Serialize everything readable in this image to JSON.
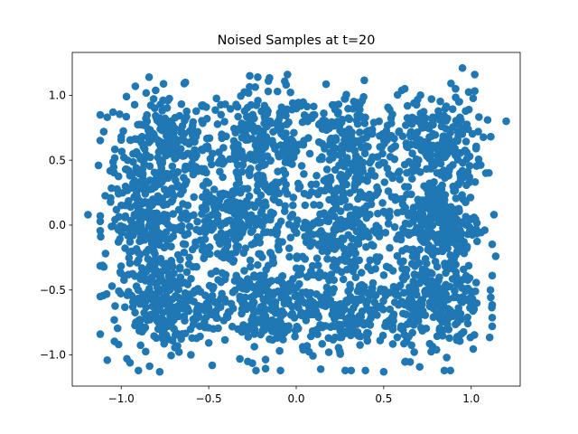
{
  "chart_data": {
    "type": "scatter",
    "title": "Noised Samples at t=20",
    "xlabel": "",
    "ylabel": "",
    "xlim": [
      -1.28,
      1.28
    ],
    "ylim": [
      -1.24,
      1.33
    ],
    "x_ticks": [
      {
        "value": -1.0,
        "label": "−1.0"
      },
      {
        "value": -0.5,
        "label": "−0.5"
      },
      {
        "value": 0.0,
        "label": "0.0"
      },
      {
        "value": 0.5,
        "label": "0.5"
      },
      {
        "value": 1.0,
        "label": "1.0"
      }
    ],
    "y_ticks": [
      {
        "value": -1.0,
        "label": "−1.0"
      },
      {
        "value": -0.5,
        "label": "−0.5"
      },
      {
        "value": 0.0,
        "label": "0.0"
      },
      {
        "value": 0.5,
        "label": "0.5"
      },
      {
        "value": 1.0,
        "label": "1.0"
      }
    ],
    "grid": false,
    "marker_color": "#1f77b4",
    "series": [
      {
        "points": [
          [
            -1.19,
            0.08
          ],
          [
            1.2,
            0.8
          ],
          [
            0.95,
            1.21
          ],
          [
            1.02,
            1.16
          ],
          [
            -1.12,
            -0.55
          ],
          [
            -1.1,
            0.72
          ],
          [
            -1.13,
            0.46
          ],
          [
            -1.08,
            -1.04
          ],
          [
            1.12,
            -0.78
          ],
          [
            1.11,
            -0.5
          ],
          [
            1.14,
            -0.24
          ],
          [
            1.13,
            0.08
          ],
          [
            -0.78,
            -1.13
          ],
          [
            0.5,
            -1.13
          ],
          [
            -0.05,
            1.16
          ],
          [
            -0.22,
            1.14
          ],
          [
            0.28,
            -1.12
          ],
          [
            -0.09,
            -1.12
          ],
          [
            0.62,
            1.05
          ],
          [
            -0.64,
            1.09
          ],
          [
            -0.48,
            -1.08
          ],
          [
            0.92,
            -0.86
          ],
          [
            -0.95,
            -1.06
          ],
          [
            1.04,
            0.72
          ],
          [
            -1.04,
            -0.73
          ],
          [
            0.86,
            -1.02
          ],
          [
            -0.97,
            0.99
          ],
          [
            0.04,
            -0.96
          ],
          [
            -0.02,
            0.94
          ],
          [
            0.72,
            0.62
          ],
          [
            0.69,
            -0.66
          ],
          [
            -0.7,
            0.68
          ],
          [
            -0.72,
            -0.7
          ],
          [
            0.25,
            0.73
          ],
          [
            -0.25,
            -0.72
          ],
          [
            0.3,
            -0.28
          ],
          [
            -0.3,
            0.28
          ],
          [
            0.05,
            0.02
          ],
          [
            0.43,
            0.42
          ],
          [
            -0.43,
            -0.44
          ]
        ],
        "dense_clusters": [
          {
            "center": [
              -0.75,
              0.6
            ],
            "spread": [
              0.24,
              0.36
            ],
            "count": 260
          },
          {
            "center": [
              -0.2,
              0.62
            ],
            "spread": [
              0.25,
              0.35
            ],
            "count": 230
          },
          {
            "center": [
              0.3,
              0.6
            ],
            "spread": [
              0.25,
              0.36
            ],
            "count": 230
          },
          {
            "center": [
              0.8,
              0.6
            ],
            "spread": [
              0.22,
              0.35
            ],
            "count": 240
          },
          {
            "center": [
              -0.85,
              0.0
            ],
            "spread": [
              0.2,
              0.3
            ],
            "count": 230
          },
          {
            "center": [
              -0.35,
              0.0
            ],
            "spread": [
              0.25,
              0.3
            ],
            "count": 220
          },
          {
            "center": [
              0.25,
              0.0
            ],
            "spread": [
              0.25,
              0.3
            ],
            "count": 220
          },
          {
            "center": [
              0.82,
              0.0
            ],
            "spread": [
              0.2,
              0.3
            ],
            "count": 230
          },
          {
            "center": [
              -0.75,
              -0.6
            ],
            "spread": [
              0.24,
              0.3
            ],
            "count": 260
          },
          {
            "center": [
              -0.2,
              -0.62
            ],
            "spread": [
              0.25,
              0.32
            ],
            "count": 230
          },
          {
            "center": [
              0.3,
              -0.6
            ],
            "spread": [
              0.25,
              0.32
            ],
            "count": 230
          },
          {
            "center": [
              0.8,
              -0.6
            ],
            "spread": [
              0.22,
              0.32
            ],
            "count": 240
          }
        ]
      }
    ]
  }
}
